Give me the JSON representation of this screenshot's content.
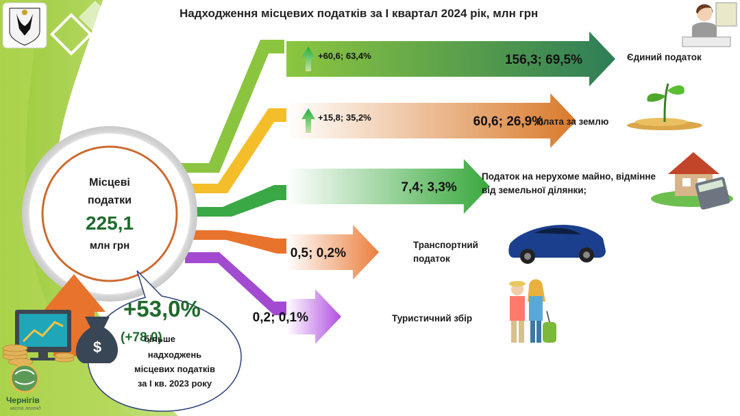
{
  "title": "Надходження місцевих податків за І квартал 2024 рік, млн грн",
  "center": {
    "line1": "Місцеві",
    "line2": "податки",
    "value": "225,1",
    "unit": "млн грн"
  },
  "growth": {
    "pct": "+53,0%",
    "abs": "(+78,0)",
    "line1": "більше",
    "line2": "надходжень",
    "line3": "місцевих податків",
    "line4": "за І кв. 2023 року"
  },
  "city": {
    "name": "Чернігів",
    "motto": "місто легенд"
  },
  "icons": [
    "coat-of-arms-icon",
    "businesswoman-icon",
    "sprout-coins-icon",
    "house-calculator-icon",
    "car-icon",
    "tourists-icon",
    "monitor-chart-icon",
    "money-bag-icon",
    "growth-arrow-icon",
    "city-logo-icon"
  ],
  "colors": {
    "green_bright": "#8bc53f",
    "green_dark": "#1e6b2c",
    "orange": "#e87d2a",
    "yellow": "#f2b92e",
    "purple": "#a24bd1"
  },
  "chart_data": {
    "type": "bar",
    "title": "Надходження місцевих податків за І квартал 2024 рік, млн грн",
    "unit": "млн грн",
    "total": 225.1,
    "categories": [
      "Єдиний податок",
      "Плата за землю",
      "Податок на нерухоме майно, відмінне від земельної ділянки;",
      "Транспортний податок",
      "Туристичний збір"
    ],
    "values": [
      156.3,
      60.6,
      7.4,
      0.5,
      0.2
    ],
    "shares_pct": [
      69.5,
      26.9,
      3.3,
      0.2,
      0.1
    ],
    "value_labels": [
      "156,3; 69,5%",
      "60,6; 26,9%",
      "7,4; 3,3%",
      "0,5; 0,2%",
      "0,2; 0,1%"
    ],
    "change_labels": [
      "+60,6; 63,4%",
      "+15,8; 35,2%",
      "",
      "",
      ""
    ],
    "series_colors": [
      [
        "#8cc63f",
        "#2e7d57"
      ],
      [
        "#ffffff",
        "#d97a2b"
      ],
      [
        "#ffffff",
        "#38a83c"
      ],
      [
        "#ffffff",
        "#ea7f3d"
      ],
      [
        "#ffffff",
        "#b04fe0"
      ]
    ],
    "label_colors": [
      "#111111",
      "#111111",
      "#111111",
      "#111111",
      "#111111"
    ]
  }
}
